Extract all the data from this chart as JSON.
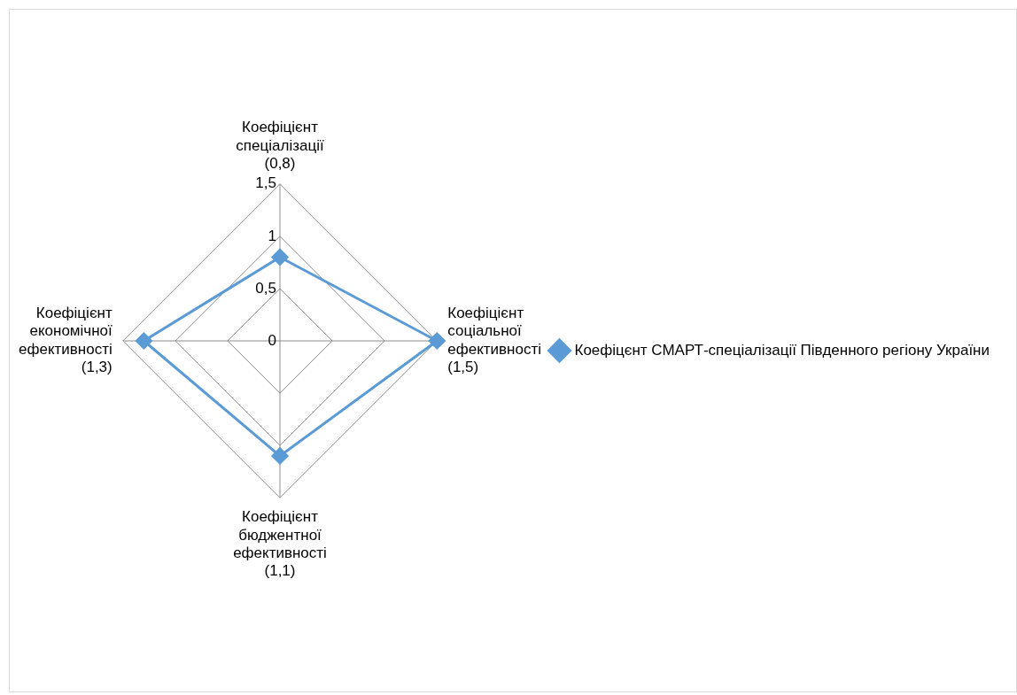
{
  "chart_data": {
    "type": "radar",
    "categories": [
      "Коефіцієнт спеціалізації (0,8)",
      "Коефіцієнт соціальної ефективності (1,5)",
      "Коефіцієнт бюджентної ефективності (1,1)",
      "Коефіцієнт економічної ефективності (1,3)"
    ],
    "series": [
      {
        "name": "Коефіцєнт СМАРТ-спеціалізації Південного регіону України",
        "color": "#5b9bd5",
        "values": [
          0.8,
          1.5,
          1.1,
          1.3
        ]
      }
    ],
    "ylim": [
      0,
      1.5
    ],
    "yticks": [
      0,
      {
        "value": 0.5,
        "label": "0,5"
      },
      1,
      {
        "value": 1.5,
        "label": "1,5"
      }
    ],
    "grid": true,
    "legend": "right",
    "marker": "diamond",
    "line_style": "solid"
  }
}
